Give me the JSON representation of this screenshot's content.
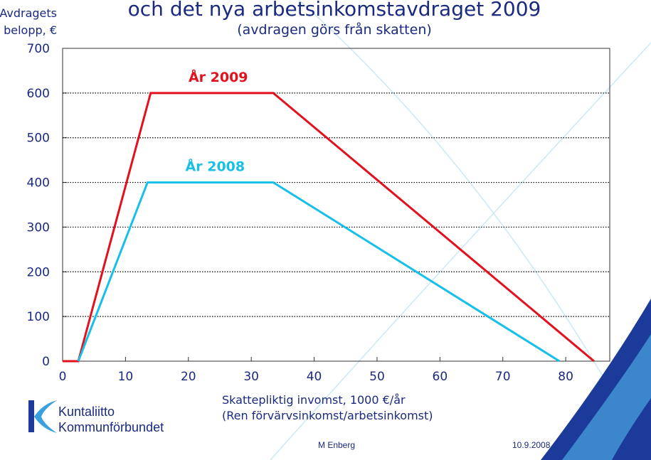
{
  "chart_data": {
    "type": "line",
    "title": "och det nya arbetsinkomstavdraget 2009",
    "subtitle": "(avdragen görs från skatten)",
    "y_label": [
      "Avdragets",
      "belopp, €"
    ],
    "x_label": [
      "Skattepliktig invomst, 1000 €/år",
      "(Ren förvärvsinkomst/arbetsinkomst)"
    ],
    "series": [
      {
        "name": "År 2009",
        "color": "#e3101e",
        "x": [
          0,
          2.5,
          14,
          33.5,
          84.5
        ],
        "values": [
          0,
          0,
          600,
          600,
          0
        ]
      },
      {
        "name": "År 2008",
        "color": "#18c0e8",
        "x": [
          2.5,
          13.5,
          33.5,
          79
        ],
        "values": [
          0,
          400,
          400,
          0
        ]
      }
    ],
    "xlim": [
      0,
      87
    ],
    "xticks": [
      0,
      10,
      20,
      30,
      40,
      50,
      60,
      70,
      80
    ],
    "ylim": [
      0,
      700
    ],
    "yticks": [
      0,
      100,
      200,
      300,
      400,
      500,
      600,
      700
    ],
    "grid": true
  },
  "logo": {
    "line1": "Kuntaliitto",
    "line2": "Kommunförbundet"
  },
  "footer": {
    "author": "M Enberg",
    "date": "10.9.2008"
  }
}
